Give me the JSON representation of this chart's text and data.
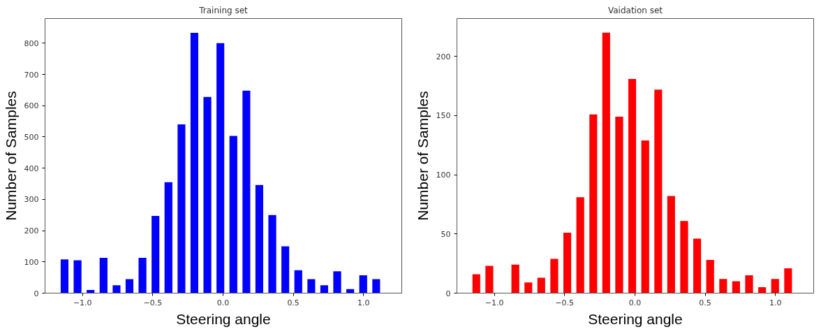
{
  "chart_data": [
    {
      "type": "histogram",
      "title": "Training set",
      "xlabel": "Steering angle",
      "ylabel": "Number of Samples",
      "bins": [
        -1.174,
        -1.082,
        -0.989,
        -0.897,
        -0.804,
        -0.712,
        -0.62,
        -0.527,
        -0.435,
        -0.342,
        -0.25,
        -0.158,
        -0.065,
        0.027,
        0.12,
        0.212,
        0.304,
        0.397,
        0.489,
        0.582,
        0.674,
        0.766,
        0.859,
        0.951,
        1.044,
        1.136
      ],
      "values": [
        108,
        105,
        10,
        113,
        25,
        45,
        113,
        247,
        355,
        540,
        833,
        628,
        800,
        503,
        648,
        346,
        250,
        150,
        73,
        45,
        25,
        70,
        13,
        57,
        45
      ],
      "color": "#0000ff",
      "xlim": [
        -1.267,
        1.272
      ],
      "ylim": [
        0,
        879
      ],
      "xticks": [
        {
          "value": -1.0,
          "label": "−1.0"
        },
        {
          "value": -0.5,
          "label": "−0.5"
        },
        {
          "value": 0.0,
          "label": "0.0"
        },
        {
          "value": 0.5,
          "label": "0.5"
        },
        {
          "value": 1.0,
          "label": "1.0"
        }
      ],
      "yticks": [
        0,
        100,
        200,
        300,
        400,
        500,
        600,
        700,
        800
      ],
      "grid": false
    },
    {
      "type": "histogram",
      "title": "Vaidation set",
      "xlabel": "Steering angle",
      "ylabel": "Number of Samples",
      "bins": [
        -1.174,
        -1.082,
        -0.989,
        -0.897,
        -0.804,
        -0.712,
        -0.62,
        -0.527,
        -0.435,
        -0.342,
        -0.25,
        -0.158,
        -0.065,
        0.027,
        0.12,
        0.212,
        0.304,
        0.397,
        0.489,
        0.582,
        0.674,
        0.766,
        0.859,
        0.951,
        1.044,
        1.136
      ],
      "values": [
        16,
        23,
        0,
        24,
        9,
        13,
        29,
        51,
        81,
        151,
        220,
        149,
        181,
        129,
        172,
        82,
        61,
        46,
        28,
        12,
        10,
        15,
        5,
        12,
        21
      ],
      "color": "#ff0000",
      "xlim": [
        -1.266,
        1.272
      ],
      "ylim": [
        0,
        232
      ],
      "xticks": [
        {
          "value": -1.0,
          "label": "−1.0"
        },
        {
          "value": -0.5,
          "label": "−0.5"
        },
        {
          "value": 0.0,
          "label": "0.0"
        },
        {
          "value": 0.5,
          "label": "0.5"
        },
        {
          "value": 1.0,
          "label": "1.0"
        }
      ],
      "yticks": [
        0,
        50,
        100,
        150,
        200
      ],
      "grid": false
    }
  ]
}
